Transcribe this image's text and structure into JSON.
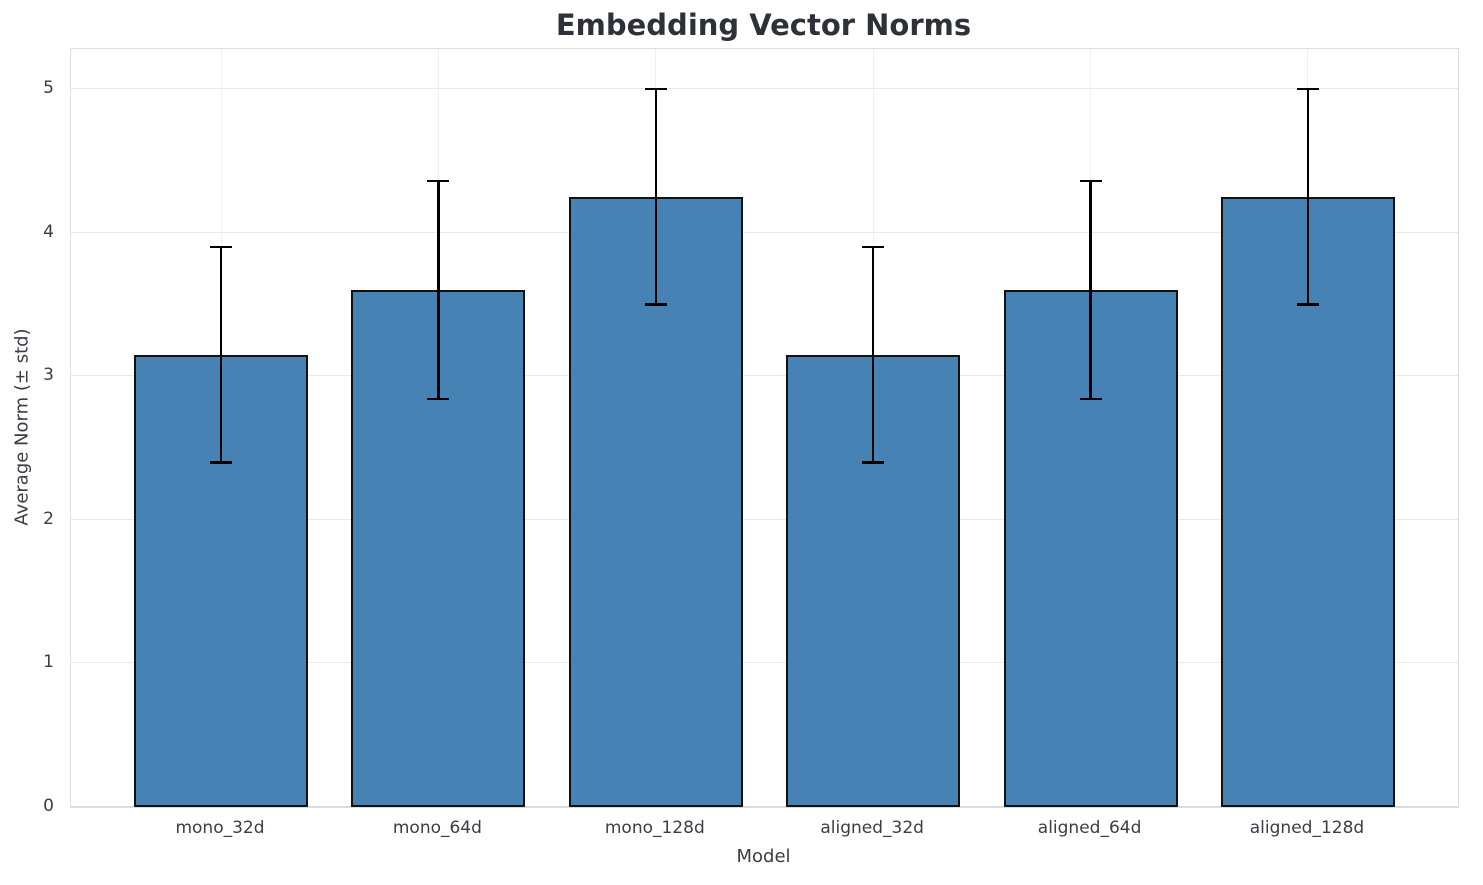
{
  "chart_data": {
    "type": "bar",
    "title": "Embedding Vector Norms",
    "xlabel": "Model",
    "ylabel": "Average Norm (± std)",
    "categories": [
      "mono_32d",
      "mono_64d",
      "mono_128d",
      "aligned_32d",
      "aligned_64d",
      "aligned_128d"
    ],
    "values": [
      3.15,
      3.6,
      4.25,
      3.15,
      3.6,
      4.25
    ],
    "errors": [
      0.75,
      0.76,
      0.75,
      0.75,
      0.76,
      0.75
    ],
    "yticks": [
      0,
      1,
      2,
      3,
      4,
      5
    ],
    "ylim": [
      0,
      5
    ],
    "grid": "on",
    "legend": "none",
    "bar_color": "#4682b4",
    "bar_edge_color": "#111111",
    "error_color": "#000000",
    "grid_color": "#e8e8ee",
    "text_color": "#3c3c46"
  }
}
